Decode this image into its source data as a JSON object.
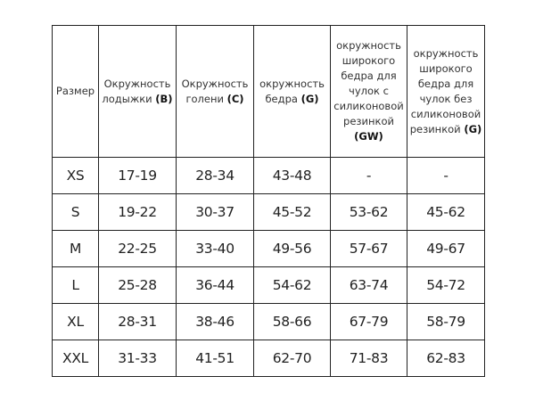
{
  "headers": [
    {
      "text": "Размер",
      "code": ""
    },
    {
      "text": "Окружность лодыжки ",
      "code": "(B)"
    },
    {
      "text": "Окружность голени ",
      "code": "(C)"
    },
    {
      "text": "окружность бедра ",
      "code": "(G)"
    },
    {
      "text": "окружность широкого бедра для чулок с силиконовой резинкой ",
      "code": "(GW)"
    },
    {
      "text": "окружность широкого бедра для чулок без силиконовой резинкой ",
      "code": "(G)"
    }
  ],
  "rows": [
    [
      "XS",
      "17-19",
      "28-34",
      "43-48",
      "-",
      "-"
    ],
    [
      "S",
      "19-22",
      "30-37",
      "45-52",
      "53-62",
      "45-62"
    ],
    [
      "M",
      "22-25",
      "33-40",
      "49-56",
      "57-67",
      "49-67"
    ],
    [
      "L",
      "25-28",
      "36-44",
      "54-62",
      "63-74",
      "54-72"
    ],
    [
      "XL",
      "28-31",
      "38-46",
      "58-66",
      "67-79",
      "58-79"
    ],
    [
      "XXL",
      "31-33",
      "41-51",
      "62-70",
      "71-83",
      "62-83"
    ]
  ]
}
